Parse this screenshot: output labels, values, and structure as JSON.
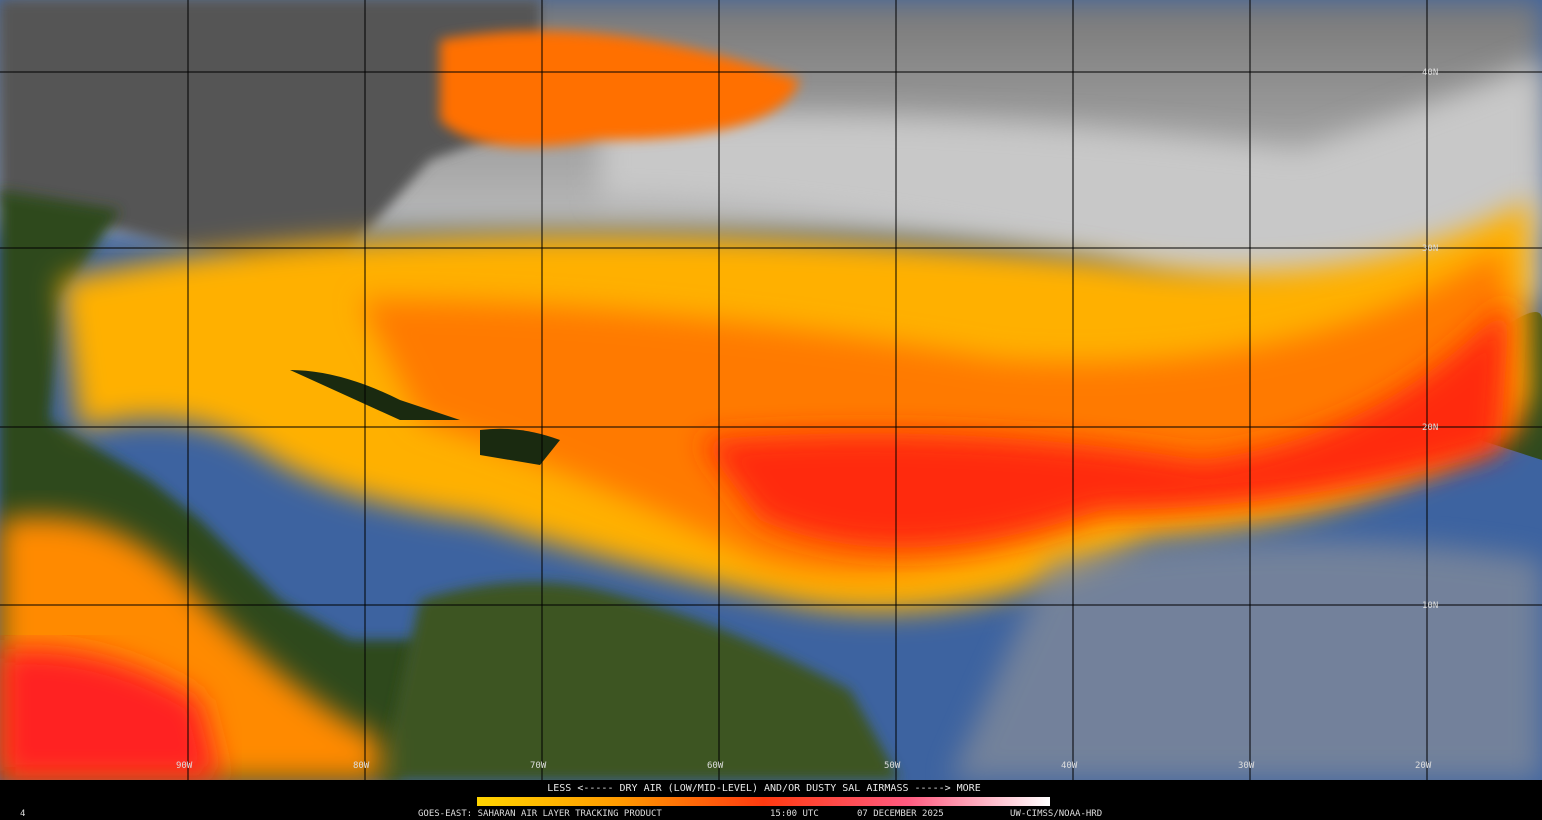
{
  "map": {
    "lat_labels": [
      "40N",
      "30N",
      "20N",
      "10N"
    ],
    "lon_labels": [
      "90W",
      "80W",
      "70W",
      "60W",
      "50W",
      "40W",
      "30W",
      "20W"
    ],
    "legend": "LESS <----- DRY AIR (LOW/MID-LEVEL) AND/OR DUSTY SAL AIRMASS -----> MORE",
    "footer": {
      "frame": "4",
      "product": "GOES-EAST: SAHARAN AIR LAYER TRACKING PRODUCT",
      "time": "15:00 UTC",
      "date": "07 DECEMBER 2025",
      "credit": "UW-CIMSS/NOAA-HRD"
    }
  }
}
